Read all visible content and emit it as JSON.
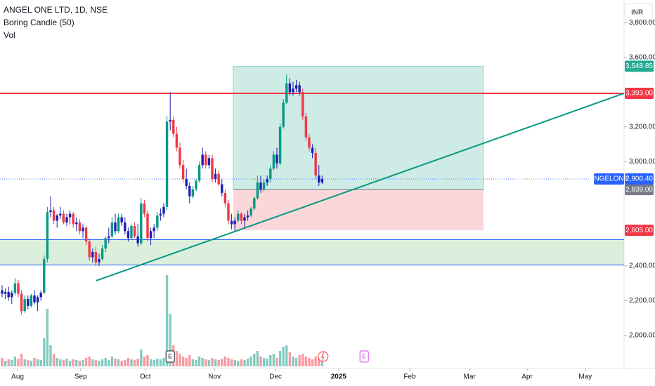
{
  "chart_data": {
    "type": "candlestick",
    "title": "ANGEL ONE LTD, 1D, NSE",
    "indicators": [
      "Boring Candle (50)",
      "Vol"
    ],
    "boring_pct": 50,
    "currency": "INR",
    "symbol": "ANGELONE",
    "last_price": {
      "value": 2900.4,
      "label": "2,900.40"
    },
    "up_color": "#089981",
    "down_color": "#f23645",
    "boring_color": "#1a1fb5",
    "ylim": [
      1810,
      3930
    ],
    "yticks": [
      {
        "value": 3800,
        "label": "3,800.00"
      },
      {
        "value": 3600,
        "label": "3,600.00"
      },
      {
        "value": 3200,
        "label": "3,200.00"
      },
      {
        "value": 3000,
        "label": "3,000.00"
      },
      {
        "value": 2400,
        "label": "2,400.00"
      },
      {
        "value": 2200,
        "label": "2,200.00"
      },
      {
        "value": 2000,
        "label": "2,000.00"
      }
    ],
    "xlim": [
      -0.65,
      192.4
    ],
    "xticks": [
      {
        "value": 4.8,
        "label": "Aug"
      },
      {
        "value": 24.3,
        "label": "Sep"
      },
      {
        "value": 44.3,
        "label": "Oct"
      },
      {
        "value": 65.7,
        "label": "Nov"
      },
      {
        "value": 84.6,
        "label": "Dec"
      },
      {
        "value": 104.1,
        "label": "2025"
      },
      {
        "value": 126.1,
        "label": "Feb"
      },
      {
        "value": 144.6,
        "label": "Mar"
      },
      {
        "value": 162.4,
        "label": "Apr"
      },
      {
        "value": 180.4,
        "label": "May"
      }
    ],
    "ohlc": [
      [
        2260,
        2290,
        2220,
        2240
      ],
      [
        2240,
        2270,
        2210,
        2250
      ],
      [
        2250,
        2280,
        2200,
        2220
      ],
      [
        2220,
        2260,
        2180,
        2245
      ],
      [
        2245,
        2330,
        2230,
        2300
      ],
      [
        2300,
        2320,
        2220,
        2240
      ],
      [
        2240,
        2260,
        2120,
        2140
      ],
      [
        2140,
        2230,
        2130,
        2210
      ],
      [
        2210,
        2230,
        2150,
        2170
      ],
      [
        2170,
        2240,
        2160,
        2230
      ],
      [
        2230,
        2260,
        2180,
        2190
      ],
      [
        2190,
        2230,
        2140,
        2220
      ],
      [
        2220,
        2260,
        2200,
        2245
      ],
      [
        2245,
        2460,
        2240,
        2440
      ],
      [
        2440,
        2740,
        2420,
        2710
      ],
      [
        2710,
        2800,
        2680,
        2720
      ],
      [
        2720,
        2740,
        2640,
        2660
      ],
      [
        2660,
        2700,
        2620,
        2690
      ],
      [
        2690,
        2740,
        2670,
        2700
      ],
      [
        2700,
        2720,
        2640,
        2650
      ],
      [
        2650,
        2700,
        2630,
        2680
      ],
      [
        2680,
        2720,
        2640,
        2700
      ],
      [
        2700,
        2710,
        2620,
        2640
      ],
      [
        2640,
        2680,
        2600,
        2650
      ],
      [
        2650,
        2670,
        2580,
        2600
      ],
      [
        2600,
        2640,
        2560,
        2620
      ],
      [
        2620,
        2630,
        2520,
        2540
      ],
      [
        2540,
        2560,
        2430,
        2450
      ],
      [
        2450,
        2500,
        2420,
        2480
      ],
      [
        2480,
        2510,
        2400,
        2420
      ],
      [
        2420,
        2470,
        2400,
        2440
      ],
      [
        2440,
        2520,
        2430,
        2500
      ],
      [
        2500,
        2570,
        2480,
        2560
      ],
      [
        2560,
        2620,
        2530,
        2570
      ],
      [
        2570,
        2680,
        2560,
        2650
      ],
      [
        2650,
        2700,
        2580,
        2600
      ],
      [
        2600,
        2700,
        2590,
        2680
      ],
      [
        2680,
        2700,
        2630,
        2650
      ],
      [
        2650,
        2680,
        2580,
        2600
      ],
      [
        2600,
        2620,
        2540,
        2560
      ],
      [
        2560,
        2640,
        2550,
        2630
      ],
      [
        2630,
        2650,
        2560,
        2570
      ],
      [
        2570,
        2640,
        2510,
        2530
      ],
      [
        2530,
        2790,
        2520,
        2760
      ],
      [
        2760,
        2780,
        2680,
        2700
      ],
      [
        2700,
        2720,
        2540,
        2560
      ],
      [
        2560,
        2620,
        2520,
        2600
      ],
      [
        2600,
        2640,
        2560,
        2620
      ],
      [
        2620,
        2710,
        2600,
        2690
      ],
      [
        2690,
        2730,
        2660,
        2700
      ],
      [
        2700,
        2760,
        2680,
        2740
      ],
      [
        2740,
        3260,
        2720,
        3230
      ],
      [
        3230,
        3400,
        3180,
        3240
      ],
      [
        3240,
        3260,
        3140,
        3160
      ],
      [
        3160,
        3200,
        3060,
        3080
      ],
      [
        3080,
        3110,
        2960,
        2980
      ],
      [
        2980,
        3010,
        2880,
        2900
      ],
      [
        2900,
        2960,
        2840,
        2860
      ],
      [
        2860,
        2880,
        2760,
        2800
      ],
      [
        2800,
        2860,
        2790,
        2840
      ],
      [
        2840,
        2900,
        2830,
        2890
      ],
      [
        2890,
        3000,
        2880,
        2980
      ],
      [
        2980,
        3080,
        2960,
        3040
      ],
      [
        3040,
        3060,
        2960,
        2980
      ],
      [
        2980,
        3040,
        2960,
        3020
      ],
      [
        3020,
        3040,
        2880,
        2900
      ],
      [
        2900,
        2960,
        2880,
        2930
      ],
      [
        2930,
        2950,
        2860,
        2870
      ],
      [
        2870,
        2900,
        2800,
        2820
      ],
      [
        2820,
        2840,
        2740,
        2760
      ],
      [
        2760,
        2780,
        2640,
        2660
      ],
      [
        2660,
        2700,
        2610,
        2640
      ],
      [
        2640,
        2680,
        2600,
        2660
      ],
      [
        2660,
        2720,
        2650,
        2700
      ],
      [
        2700,
        2710,
        2640,
        2660
      ],
      [
        2660,
        2700,
        2620,
        2680
      ],
      [
        2680,
        2720,
        2660,
        2690
      ],
      [
        2690,
        2740,
        2680,
        2730
      ],
      [
        2730,
        2800,
        2720,
        2790
      ],
      [
        2790,
        2920,
        2780,
        2880
      ],
      [
        2880,
        2920,
        2820,
        2840
      ],
      [
        2840,
        2900,
        2830,
        2880
      ],
      [
        2880,
        2920,
        2860,
        2900
      ],
      [
        2900,
        2980,
        2880,
        2960
      ],
      [
        2960,
        3060,
        2950,
        3040
      ],
      [
        3040,
        3080,
        2960,
        2990
      ],
      [
        2990,
        3220,
        2980,
        3200
      ],
      [
        3200,
        3360,
        3190,
        3340
      ],
      [
        3340,
        3500,
        3330,
        3450
      ],
      [
        3450,
        3480,
        3380,
        3400
      ],
      [
        3400,
        3460,
        3380,
        3420
      ],
      [
        3420,
        3470,
        3400,
        3440
      ],
      [
        3440,
        3460,
        3380,
        3400
      ],
      [
        3400,
        3420,
        3240,
        3260
      ],
      [
        3260,
        3280,
        3120,
        3140
      ],
      [
        3140,
        3160,
        3060,
        3080
      ],
      [
        3080,
        3100,
        3020,
        3050
      ],
      [
        3050,
        3080,
        2900,
        2920
      ],
      [
        2920,
        2980,
        2860,
        2880
      ],
      [
        2880,
        2920,
        2870,
        2900.4
      ]
    ],
    "volume": {
      "y2lim": [
        0,
        200
      ],
      "values": [
        12,
        8,
        10,
        9,
        14,
        11,
        18,
        10,
        9,
        8,
        12,
        10,
        9,
        40,
        82,
        30,
        18,
        12,
        10,
        9,
        11,
        8,
        10,
        9,
        8,
        9,
        12,
        14,
        10,
        9,
        8,
        10,
        12,
        9,
        14,
        11,
        10,
        8,
        9,
        12,
        10,
        9,
        11,
        24,
        14,
        16,
        10,
        9,
        11,
        10,
        12,
        130,
        75,
        30,
        22,
        18,
        14,
        12,
        16,
        10,
        9,
        14,
        12,
        10,
        9,
        12,
        10,
        9,
        11,
        14,
        12,
        10,
        9,
        8,
        10,
        9,
        11,
        14,
        18,
        22,
        14,
        12,
        11,
        16,
        18,
        12,
        22,
        28,
        30,
        20,
        14,
        12,
        16,
        18,
        14,
        12,
        10,
        14,
        12,
        8
      ]
    },
    "resistance": {
      "value": 3393,
      "label": "3,393.00"
    },
    "demand_zone": [
      2551,
      2405
    ],
    "trendline": {
      "x": [
        29.1,
        192.4
      ],
      "y": [
        2315,
        3393
      ]
    },
    "position": {
      "x": [
        71.5,
        148.9
      ],
      "target": {
        "value": 3548.85,
        "label": "3,548.85"
      },
      "entry": {
        "value": 2839,
        "label": "2,839.00"
      },
      "stop": {
        "value": 2605,
        "label": "2,605.00"
      }
    },
    "events": [
      {
        "x": 52,
        "label": "E"
      },
      {
        "x": 112,
        "label": "E"
      }
    ],
    "dividend_x": 99.3
  }
}
